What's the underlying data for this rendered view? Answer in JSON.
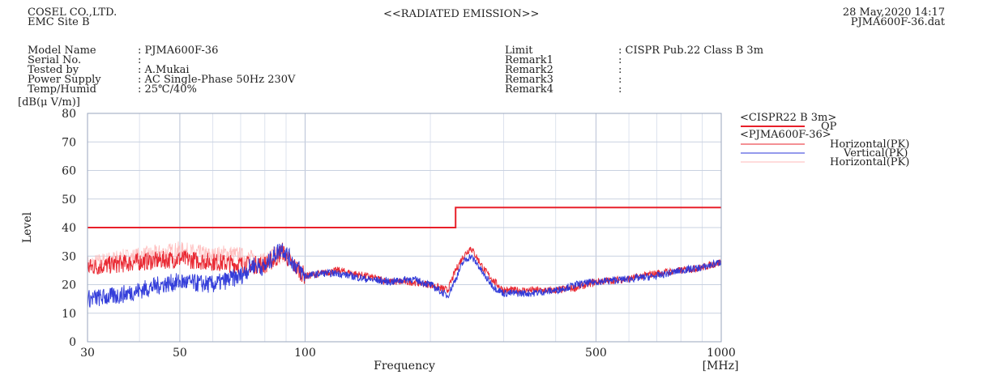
{
  "header": {
    "company": "COSEL CO.,LTD.",
    "site": "EMC Site B",
    "title": "<<RADIATED EMISSION>>",
    "datetime": "28 May,2020 14:17",
    "filename": "PJMA600F-36.dat"
  },
  "info_left": [
    {
      "label": "Model Name",
      "value": ": PJMA600F-36"
    },
    {
      "label": "Serial No.",
      "value": ":"
    },
    {
      "label": "Tested by",
      "value": ": A.Mukai"
    },
    {
      "label": "Power Supply",
      "value": ": AC Single-Phase 50Hz 230V"
    },
    {
      "label": "Temp/Humid",
      "value": ": 25℃/40%"
    }
  ],
  "info_right": [
    {
      "label": "Limit",
      "value": ": CISPR Pub.22 Class B 3m"
    },
    {
      "label": "Remark1",
      "value": ":"
    },
    {
      "label": "Remark2",
      "value": ":"
    },
    {
      "label": "Remark3",
      "value": ":"
    },
    {
      "label": "Remark4",
      "value": ":"
    }
  ],
  "legend": {
    "limit_group": "<CISPR22 B  3m>",
    "limit_item": "QP",
    "data_group": "<PJMA600F-36>",
    "items": [
      "Horizontal(PK)",
      "Vertical(PK)",
      "Horizontal(PK)"
    ]
  },
  "chart_data": {
    "type": "line",
    "title": "<<RADIATED EMISSION>>",
    "xlabel": "Frequency",
    "xunit": "[MHz]",
    "ylabel": "Level",
    "yunit": "[dB(μ V/m)]",
    "x_scale": "log",
    "xlim": [
      30,
      1000
    ],
    "ylim": [
      0,
      80
    ],
    "x_ticks": [
      30,
      50,
      100,
      500,
      1000
    ],
    "y_ticks": [
      0,
      10,
      20,
      30,
      40,
      50,
      60,
      70,
      80
    ],
    "grid": true,
    "legend_position": "right",
    "colors": {
      "limit": "#e8202a",
      "horizontal": "#e8202a",
      "vertical": "#2a35d8",
      "horizontal2": "#ffb8b8"
    },
    "series": [
      {
        "name": "QP",
        "color": "#e8202a",
        "x": [
          30,
          230,
          230,
          1000
        ],
        "y": [
          40,
          40,
          47,
          47
        ]
      },
      {
        "name": "Horizontal(PK)",
        "color": "#e8202a",
        "x": [
          30,
          40,
          50,
          60,
          70,
          80,
          85,
          88,
          92,
          100,
          110,
          120,
          140,
          160,
          180,
          200,
          210,
          220,
          230,
          240,
          250,
          260,
          270,
          285,
          300,
          350,
          400,
          450,
          500,
          600,
          700,
          800,
          900,
          1000
        ],
        "y": [
          26,
          28,
          29,
          28,
          27,
          27,
          29,
          32,
          28,
          23,
          24,
          25,
          23,
          21,
          21,
          20,
          19,
          18,
          25,
          30,
          33,
          29,
          25,
          21,
          18,
          18,
          18,
          19,
          21,
          22,
          24,
          25,
          26,
          28
        ]
      },
      {
        "name": "Vertical(PK)",
        "color": "#2a35d8",
        "x": [
          30,
          35,
          40,
          45,
          50,
          60,
          70,
          75,
          80,
          85,
          88,
          92,
          100,
          110,
          120,
          140,
          160,
          180,
          200,
          210,
          220,
          230,
          240,
          250,
          260,
          270,
          285,
          300,
          350,
          400,
          450,
          500,
          600,
          700,
          800,
          900,
          1000
        ],
        "y": [
          15,
          16,
          18,
          20,
          21,
          20,
          23,
          27,
          26,
          31,
          33,
          29,
          23,
          24,
          24,
          22,
          21,
          22,
          20,
          18,
          16,
          22,
          28,
          30,
          27,
          23,
          19,
          17,
          17,
          18,
          20,
          21,
          22,
          23,
          25,
          26,
          28
        ]
      },
      {
        "name": "Horizontal(PK)",
        "color": "#ffb8b8",
        "x": [
          30,
          35,
          40,
          45,
          50,
          55,
          60,
          65,
          70,
          75,
          80,
          85,
          90
        ],
        "y": [
          27,
          29,
          30,
          31,
          32,
          31,
          30,
          31,
          30,
          29,
          28,
          31,
          29
        ]
      }
    ]
  }
}
